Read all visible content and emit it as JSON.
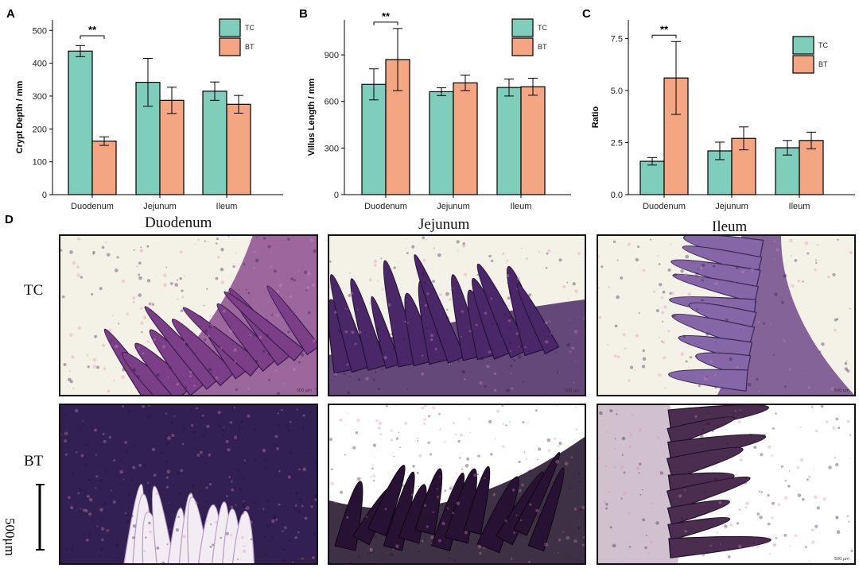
{
  "chart_data": [
    {
      "panel": "A",
      "type": "bar",
      "ylabel": "Crypt Depth / mm",
      "categories": [
        "Duodenum",
        "Jejunum",
        "Ileum"
      ],
      "ylim": [
        0,
        520
      ],
      "yticks": [
        0,
        100,
        200,
        300,
        400,
        500
      ],
      "series": [
        {
          "name": "TC",
          "color": "#7fcdbb",
          "values": [
            437,
            342,
            315
          ],
          "errors": [
            17,
            73,
            28
          ]
        },
        {
          "name": "BT",
          "color": "#f4a582",
          "values": [
            163,
            287,
            275
          ],
          "errors": [
            13,
            40,
            27
          ]
        }
      ],
      "significance": [
        {
          "category": "Duodenum",
          "label": "**"
        }
      ],
      "legend": "top-right"
    },
    {
      "panel": "B",
      "type": "bar",
      "ylabel": "Villus Length / mm",
      "categories": [
        "Duodenum",
        "Jejunum",
        "Ileum"
      ],
      "ylim": [
        0,
        1100
      ],
      "yticks": [
        0,
        300,
        600,
        900
      ],
      "series": [
        {
          "name": "TC",
          "color": "#7fcdbb",
          "values": [
            710,
            663,
            690
          ],
          "errors": [
            100,
            25,
            55
          ]
        },
        {
          "name": "BT",
          "color": "#f4a582",
          "values": [
            870,
            720,
            695
          ],
          "errors": [
            200,
            50,
            55
          ]
        }
      ],
      "significance": [
        {
          "category": "Duodenum",
          "label": "**"
        }
      ],
      "legend": "top-right"
    },
    {
      "panel": "C",
      "type": "bar",
      "ylabel": "Ratio",
      "categories": [
        "Duodenum",
        "Jejunum",
        "Ileum"
      ],
      "ylim": [
        0,
        8.2
      ],
      "yticks": [
        "0.0",
        "2.5",
        "5.0",
        "7.5"
      ],
      "series": [
        {
          "name": "TC",
          "color": "#7fcdbb",
          "values": [
            1.6,
            2.1,
            2.25
          ],
          "errors": [
            0.18,
            0.42,
            0.35
          ]
        },
        {
          "name": "BT",
          "color": "#f4a582",
          "values": [
            5.6,
            2.7,
            2.6
          ],
          "errors": [
            1.75,
            0.55,
            0.4
          ]
        }
      ],
      "significance": [
        {
          "category": "Duodenum",
          "label": "**"
        }
      ],
      "legend": "top-right"
    }
  ],
  "histology": {
    "panel": "D",
    "columns": [
      "Duodenum",
      "Jejunum",
      "Ileum"
    ],
    "rows": [
      "TC",
      "BT"
    ],
    "scale_label": "500μm",
    "micro_scale": "500 μm"
  },
  "colors": {
    "tc": "#7fcdbb",
    "bt": "#f4a582",
    "stain_dark": "#3d1f52",
    "stain_pink": "#c77aa6",
    "background": "#f4f1e6"
  }
}
